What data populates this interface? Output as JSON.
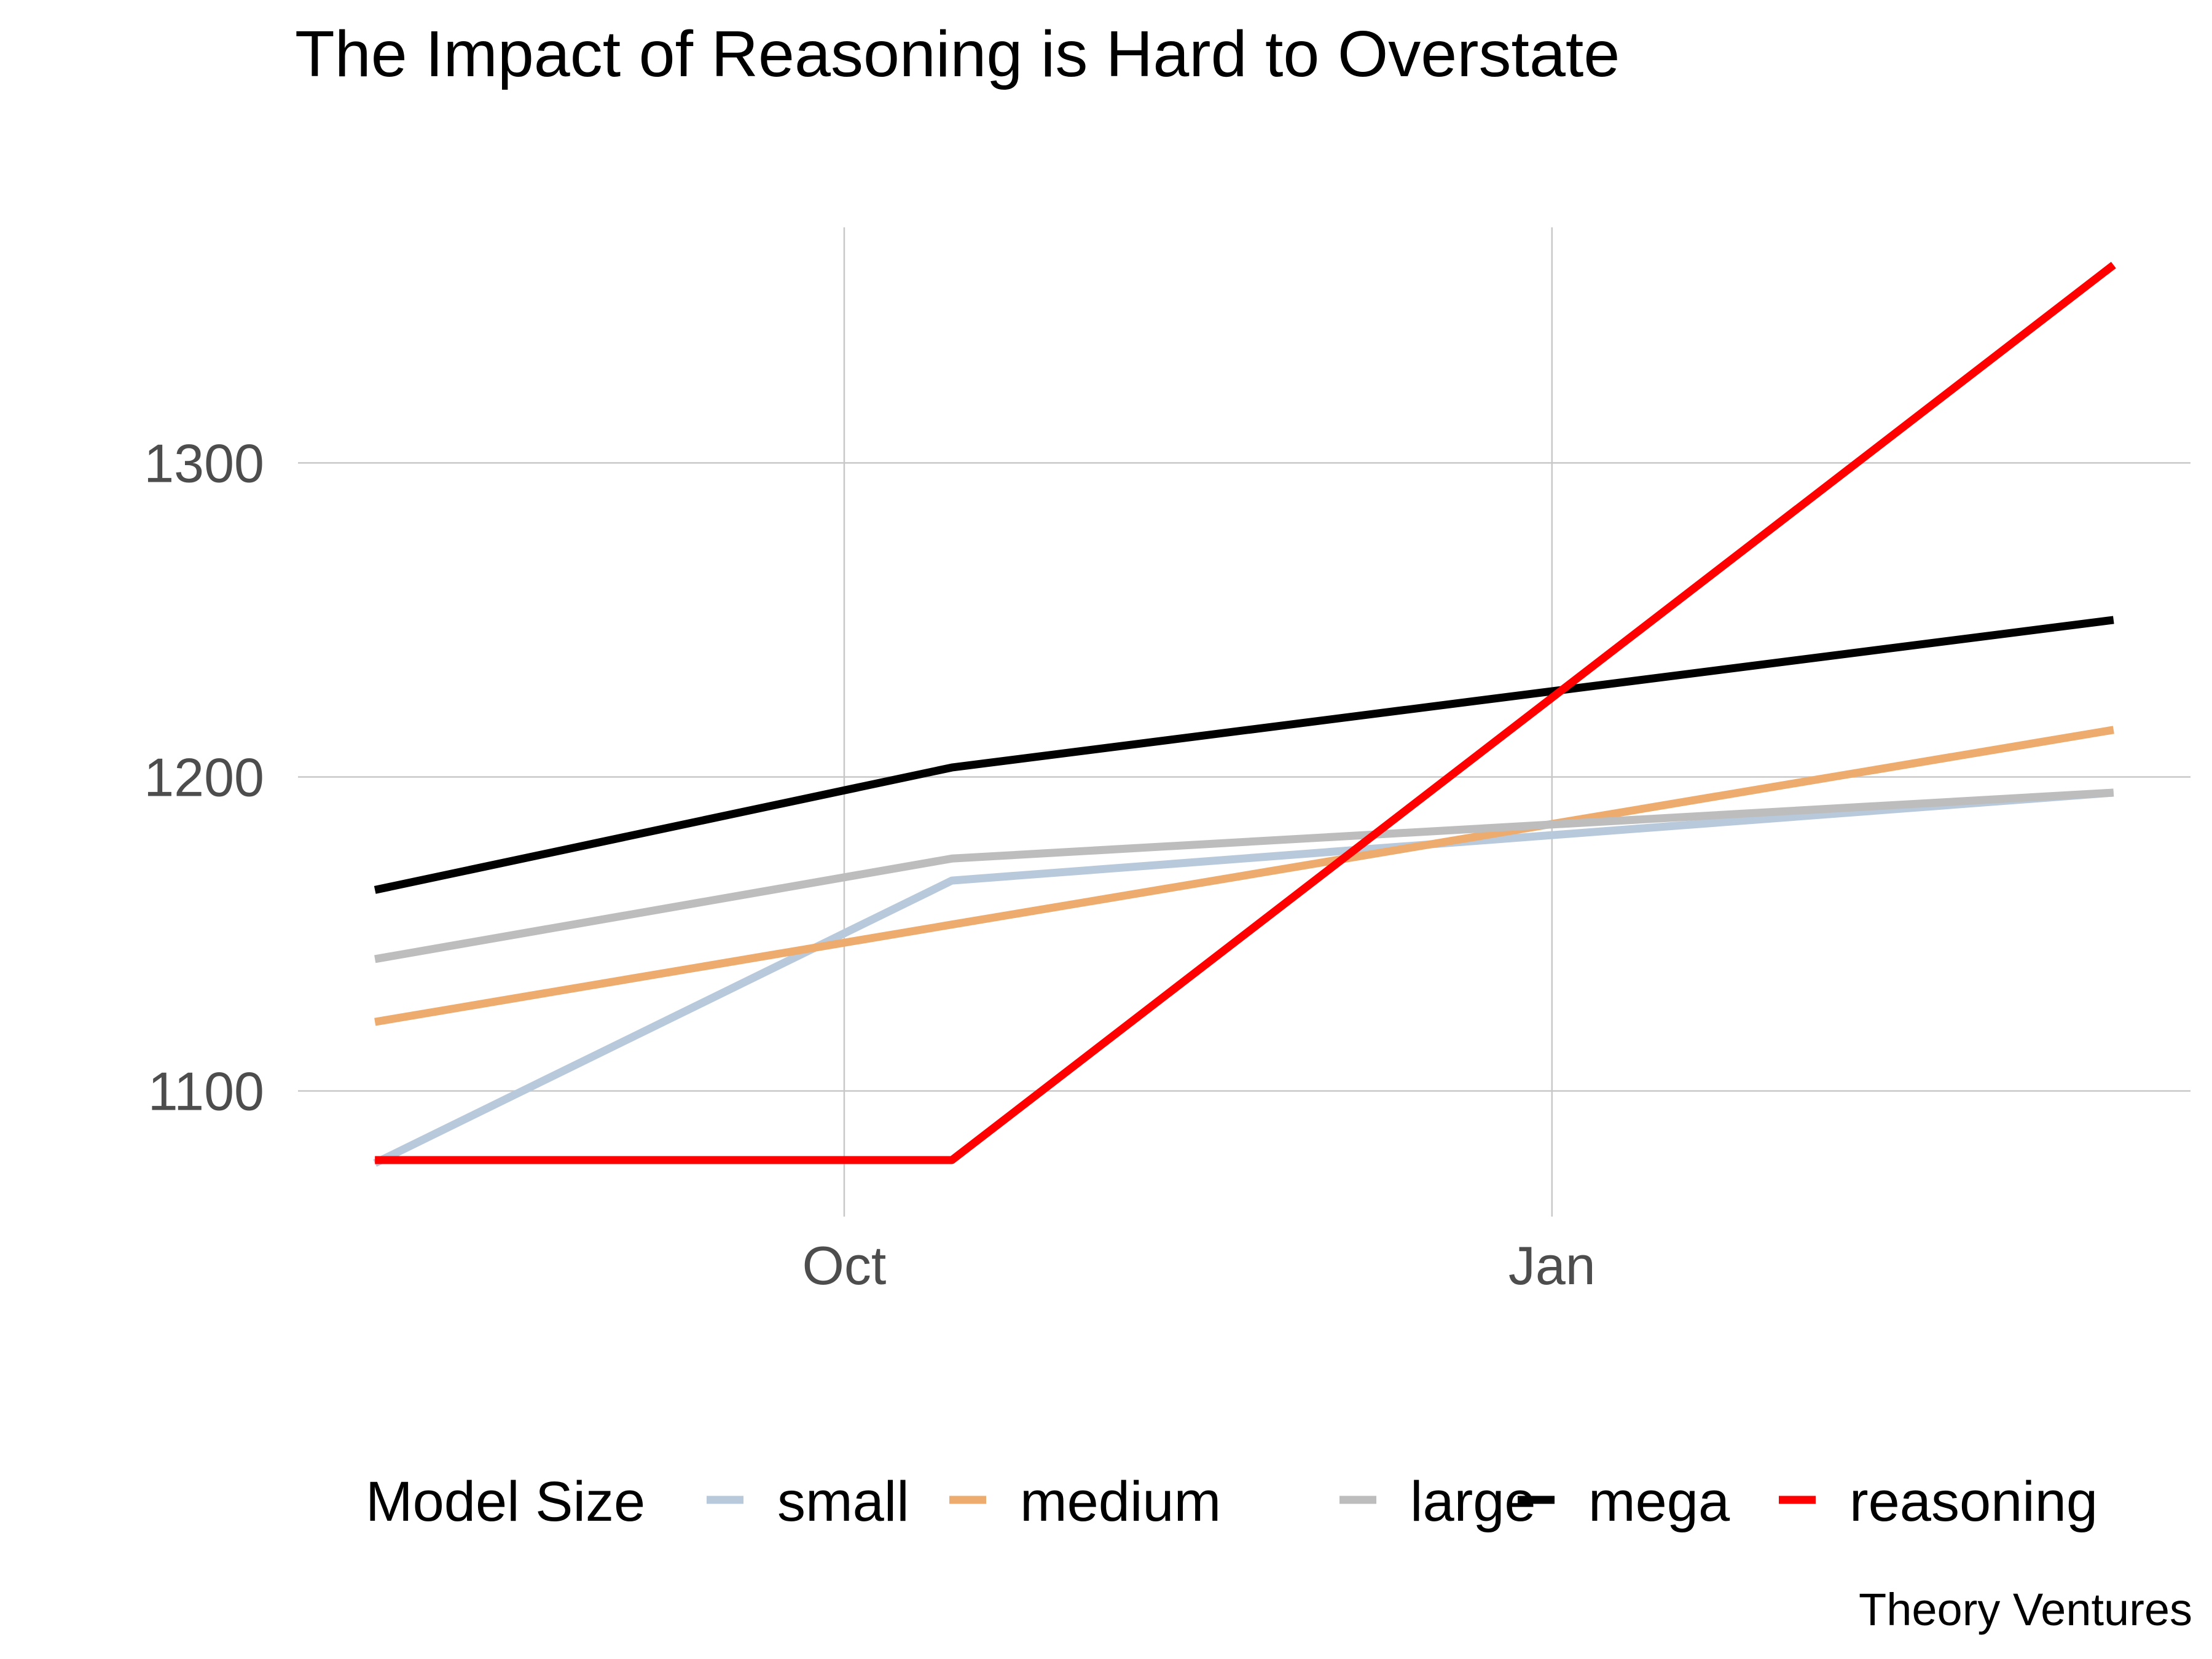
{
  "chart_data": {
    "type": "line",
    "title": "The Impact of Reasoning is Hard to Overstate",
    "xlabel": "",
    "ylabel": "",
    "x": [
      "2024-08-01",
      "2024-10-15",
      "2025-03-15"
    ],
    "x_ticks": [
      {
        "label": "Oct",
        "value": "2024-10-01"
      },
      {
        "label": "Jan",
        "value": "2025-01-01"
      }
    ],
    "y_ticks": [
      1100,
      1200,
      1300
    ],
    "ylim": [
      1060,
      1375
    ],
    "grid": true,
    "legend_title": "Model Size",
    "legend_position": "bottom",
    "series": [
      {
        "name": "small",
        "color": "#b8c9dc",
        "values": [
          1077,
          1167,
          1195
        ]
      },
      {
        "name": "medium",
        "color": "#eeab6e",
        "values": [
          1122,
          1153,
          1215
        ]
      },
      {
        "name": "large",
        "color": "#bdbdbd",
        "values": [
          1142,
          1174,
          1195
        ]
      },
      {
        "name": "mega",
        "color": "#000000",
        "values": [
          1164,
          1203,
          1250
        ]
      },
      {
        "name": "reasoning",
        "color": "#ff0000",
        "values": [
          1078,
          1078,
          1363
        ]
      }
    ],
    "caption": "Theory Ventures"
  }
}
